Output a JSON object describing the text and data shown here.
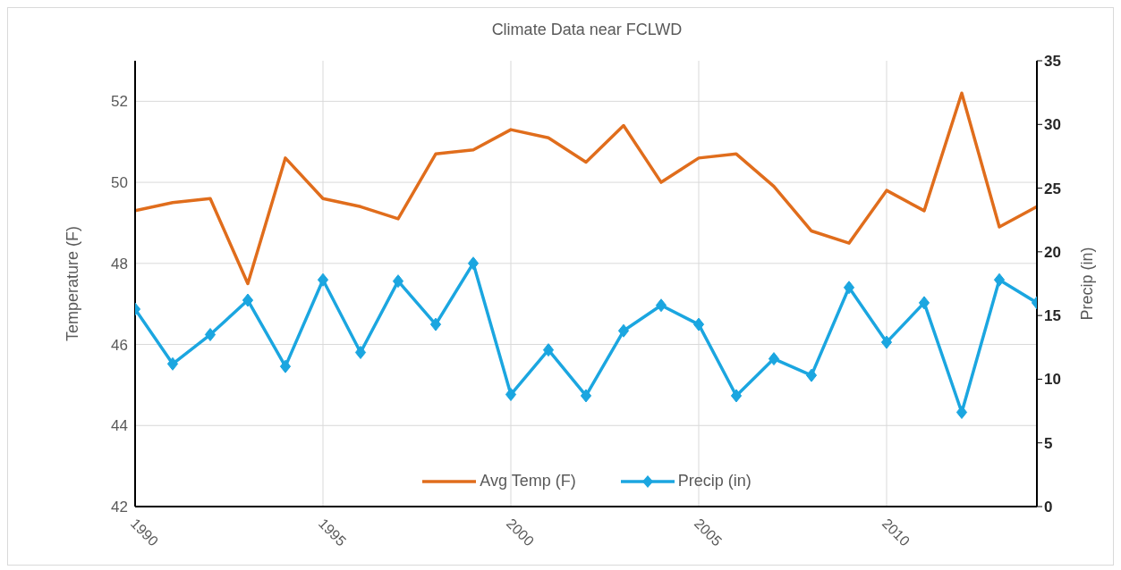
{
  "chart_data": {
    "type": "line",
    "title": "Climate Data near FCLWD",
    "ylabel": "Temperature (F)",
    "y2label": "Precip (in)",
    "x": [
      1990,
      1991,
      1992,
      1993,
      1994,
      1995,
      1996,
      1997,
      1998,
      1999,
      2000,
      2001,
      2002,
      2003,
      2004,
      2005,
      2006,
      2007,
      2008,
      2009,
      2010,
      2011,
      2012,
      2013,
      2014
    ],
    "xlim": [
      1990,
      2014
    ],
    "xticks": [
      1990,
      1995,
      2000,
      2005,
      2010
    ],
    "ylim": [
      42,
      53
    ],
    "yticks": [
      42,
      44,
      46,
      48,
      50,
      52
    ],
    "y2lim": [
      0,
      35
    ],
    "y2ticks": [
      0,
      5,
      10,
      15,
      20,
      25,
      30,
      35
    ],
    "grid": true,
    "legend": "bottom",
    "series": [
      {
        "name": "Avg Temp (F)",
        "color": "#e06d1c",
        "marker": "none",
        "values": [
          49.3,
          49.5,
          49.6,
          47.5,
          50.6,
          49.6,
          49.4,
          49.1,
          50.7,
          50.8,
          51.3,
          51.1,
          50.5,
          51.4,
          50.0,
          50.6,
          50.7,
          49.9,
          48.8,
          48.5,
          49.8,
          49.3,
          52.2,
          48.9,
          49.4
        ]
      },
      {
        "name": "Precip (in)",
        "color": "#1ba6e0",
        "marker": "diamond",
        "axis": "y2",
        "values": [
          15.5,
          11.2,
          13.5,
          16.2,
          11.0,
          17.8,
          12.1,
          17.7,
          14.3,
          19.1,
          8.8,
          12.3,
          8.7,
          13.8,
          15.8,
          14.3,
          8.7,
          11.6,
          10.3,
          17.2,
          12.9,
          16.0,
          7.4,
          17.8,
          16.0
        ]
      }
    ]
  }
}
